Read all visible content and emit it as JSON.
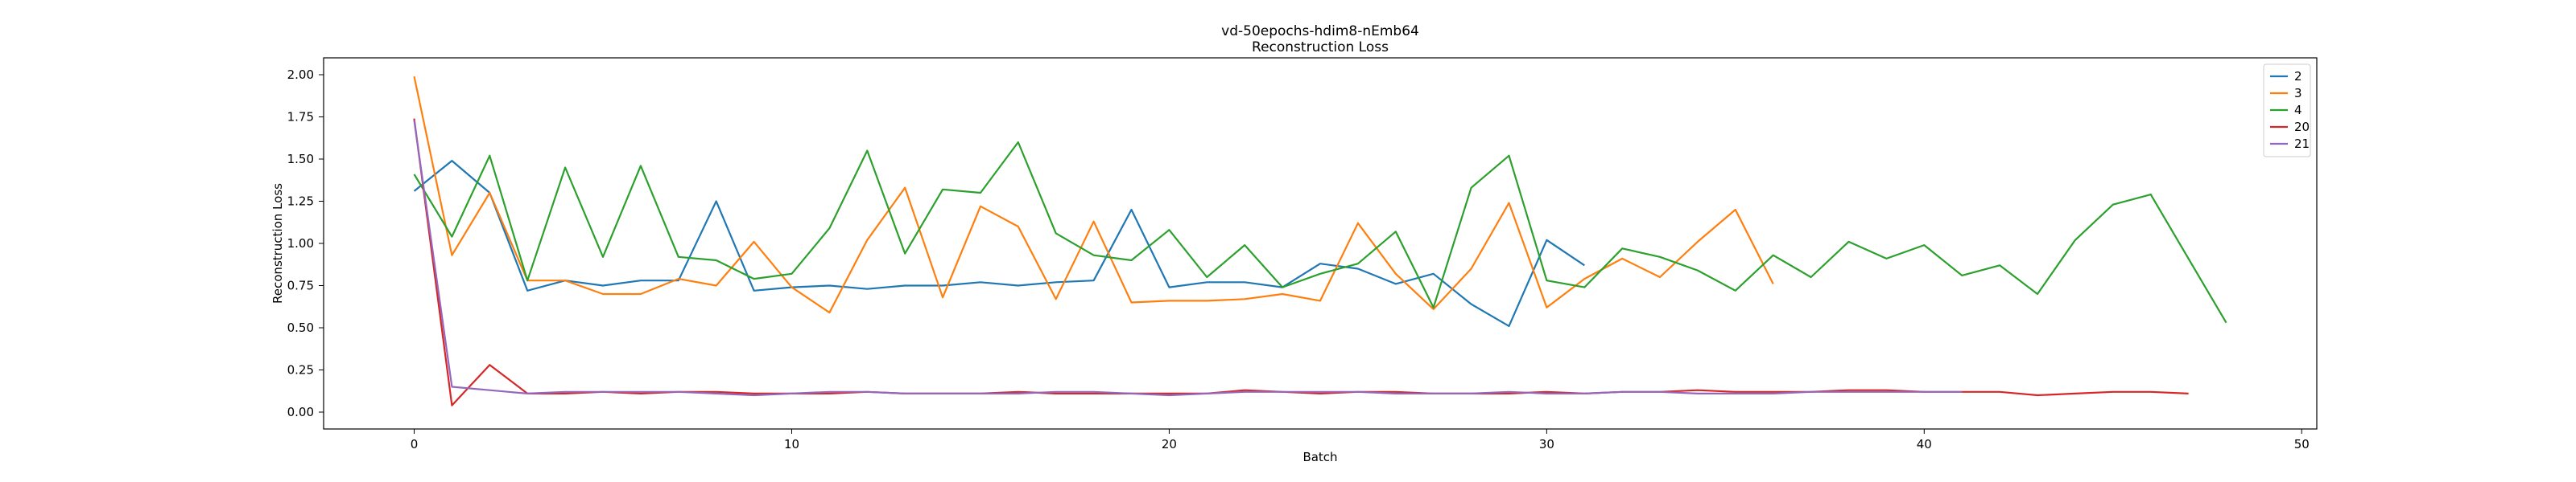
{
  "chart_data": {
    "type": "line",
    "title": "vd-50epochs-hdim8-nEmb64",
    "subtitle": "Reconstruction Loss",
    "xlabel": "Batch",
    "ylabel": "Reconstruction Loss",
    "xlim": [
      -2.4,
      50.4
    ],
    "ylim": [
      -0.1,
      2.1
    ],
    "xticks": [
      0,
      10,
      20,
      30,
      40,
      50
    ],
    "yticks": [
      0.0,
      0.25,
      0.5,
      0.75,
      1.0,
      1.25,
      1.5,
      1.75,
      2.0
    ],
    "ytick_labels": [
      "0.00",
      "0.25",
      "0.50",
      "0.75",
      "1.00",
      "1.25",
      "1.50",
      "1.75",
      "2.00"
    ],
    "grid": false,
    "legend_position": "top-right",
    "series": [
      {
        "name": "2",
        "color": "#1f77b4",
        "x": [
          0,
          1,
          2,
          3,
          4,
          5,
          6,
          7,
          8,
          9,
          10,
          11,
          12,
          13,
          14,
          15,
          16,
          17,
          18,
          19,
          20,
          21,
          22,
          23,
          24,
          25,
          26,
          27,
          28,
          29,
          30,
          31
        ],
        "y": [
          1.31,
          1.49,
          1.3,
          0.72,
          0.78,
          0.75,
          0.78,
          0.78,
          1.25,
          0.72,
          0.74,
          0.75,
          0.73,
          0.75,
          0.75,
          0.77,
          0.75,
          0.77,
          0.78,
          1.2,
          0.74,
          0.77,
          0.77,
          0.74,
          0.88,
          0.85,
          0.76,
          0.82,
          0.64,
          0.51,
          1.02,
          0.87
        ]
      },
      {
        "name": "3",
        "color": "#ff7f0e",
        "x": [
          0,
          1,
          2,
          3,
          4,
          5,
          6,
          7,
          8,
          9,
          10,
          11,
          12,
          13,
          14,
          15,
          16,
          17,
          18,
          19,
          20,
          21,
          22,
          23,
          24,
          25,
          26,
          27,
          28,
          29,
          30,
          31,
          32,
          33,
          34,
          35,
          36
        ],
        "y": [
          1.99,
          0.93,
          1.3,
          0.78,
          0.78,
          0.7,
          0.7,
          0.79,
          0.75,
          1.01,
          0.74,
          0.59,
          1.02,
          1.33,
          0.68,
          1.22,
          1.1,
          0.67,
          1.13,
          0.65,
          0.66,
          0.66,
          0.67,
          0.7,
          0.66,
          1.12,
          0.82,
          0.61,
          0.85,
          1.24,
          0.62,
          0.79,
          0.91,
          0.8,
          1.01,
          1.2,
          0.76
        ]
      },
      {
        "name": "4",
        "color": "#2ca02c",
        "x": [
          0,
          1,
          2,
          3,
          4,
          5,
          6,
          7,
          8,
          9,
          10,
          11,
          12,
          13,
          14,
          15,
          16,
          17,
          18,
          19,
          20,
          21,
          22,
          23,
          24,
          25,
          26,
          27,
          28,
          29,
          30,
          31,
          32,
          33,
          34,
          35,
          36,
          37,
          38,
          39,
          40,
          41,
          42,
          43,
          44,
          45,
          46,
          47,
          48
        ],
        "y": [
          1.41,
          1.04,
          1.52,
          0.78,
          1.45,
          0.92,
          1.46,
          0.92,
          0.9,
          0.79,
          0.82,
          1.09,
          1.55,
          0.94,
          1.32,
          1.3,
          1.6,
          1.06,
          0.93,
          0.9,
          1.08,
          0.8,
          0.99,
          0.74,
          0.82,
          0.88,
          1.07,
          0.62,
          1.33,
          1.52,
          0.78,
          0.74,
          0.97,
          0.92,
          0.84,
          0.72,
          0.93,
          0.8,
          1.01,
          0.91,
          0.99,
          0.81,
          0.87,
          0.7,
          1.02,
          1.23,
          1.29,
          0.91,
          0.53
        ]
      },
      {
        "name": "20",
        "color": "#d62728",
        "x": [
          0,
          1,
          2,
          3,
          4,
          5,
          6,
          7,
          8,
          9,
          10,
          11,
          12,
          13,
          14,
          15,
          16,
          17,
          18,
          19,
          20,
          21,
          22,
          23,
          24,
          25,
          26,
          27,
          28,
          29,
          30,
          31,
          32,
          33,
          34,
          35,
          36,
          37,
          38,
          39,
          40,
          41,
          42,
          43,
          44,
          45,
          46,
          47
        ],
        "y": [
          1.74,
          0.04,
          0.28,
          0.11,
          0.11,
          0.12,
          0.11,
          0.12,
          0.12,
          0.11,
          0.11,
          0.11,
          0.12,
          0.11,
          0.11,
          0.11,
          0.12,
          0.11,
          0.11,
          0.11,
          0.11,
          0.11,
          0.13,
          0.12,
          0.11,
          0.12,
          0.12,
          0.11,
          0.11,
          0.11,
          0.12,
          0.11,
          0.12,
          0.12,
          0.13,
          0.12,
          0.12,
          0.12,
          0.13,
          0.13,
          0.12,
          0.12,
          0.12,
          0.1,
          0.11,
          0.12,
          0.12,
          0.11
        ]
      },
      {
        "name": "21",
        "color": "#9467bd",
        "x": [
          0,
          1,
          2,
          3,
          4,
          5,
          6,
          7,
          8,
          9,
          10,
          11,
          12,
          13,
          14,
          15,
          16,
          17,
          18,
          19,
          20,
          21,
          22,
          23,
          24,
          25,
          26,
          27,
          28,
          29,
          30,
          31,
          32,
          33,
          34,
          35,
          36,
          37,
          38,
          39,
          40,
          41
        ],
        "y": [
          1.73,
          0.15,
          0.13,
          0.11,
          0.12,
          0.12,
          0.12,
          0.12,
          0.11,
          0.1,
          0.11,
          0.12,
          0.12,
          0.11,
          0.11,
          0.11,
          0.11,
          0.12,
          0.12,
          0.11,
          0.1,
          0.11,
          0.12,
          0.12,
          0.12,
          0.12,
          0.11,
          0.11,
          0.11,
          0.12,
          0.11,
          0.11,
          0.12,
          0.12,
          0.11,
          0.11,
          0.11,
          0.12,
          0.12,
          0.12,
          0.12,
          0.12
        ]
      }
    ]
  }
}
